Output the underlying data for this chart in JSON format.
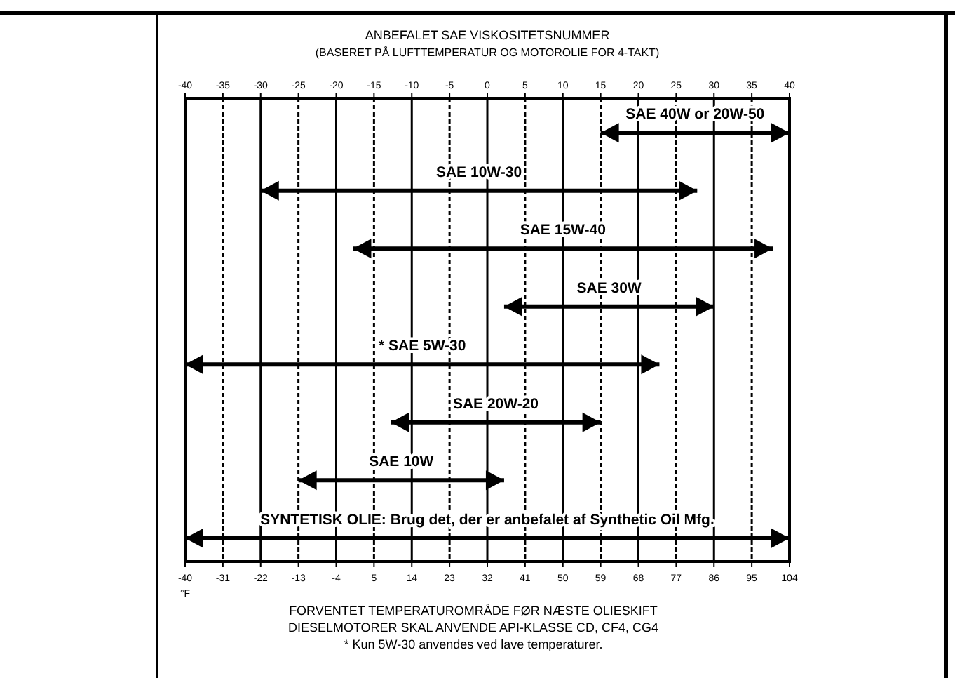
{
  "chart_data": {
    "type": "bar",
    "orientation": "horizontal",
    "title": "ANBEFALET SAE VISKOSITETSNUMMER",
    "subtitle": "(BASERET PÅ LUFTTEMPERATUR OG MOTOROLIE FOR 4-TAKT)",
    "categories": [
      "SAE 40W or 20W-50",
      "SAE 10W-30",
      "SAE 15W-40",
      "SAE 30W",
      "* SAE 5W-30",
      "SAE 20W-20",
      "SAE 10W",
      "SYNTETISK OLIE: Brug det, der er anbefalet af Synthetic Oil Mfg."
    ],
    "base": [
      59,
      -22,
      0,
      36,
      -40,
      9,
      -13,
      -40
    ],
    "values": [
      45,
      104,
      100,
      50,
      113,
      50,
      49,
      144
    ],
    "color": "#000000",
    "xlabel": "°F",
    "xlim": [
      -40,
      104
    ],
    "xticks": [
      -40,
      -31,
      -22,
      -13,
      -4,
      5,
      14,
      23,
      32,
      41,
      50,
      59,
      68,
      77,
      86,
      95,
      104
    ],
    "x2lim": [
      -40,
      40
    ],
    "x2ticks": [
      -40,
      -35,
      -30,
      -25,
      -20,
      -15,
      -10,
      -5,
      0,
      5,
      10,
      15,
      20,
      25,
      30,
      35,
      40
    ],
    "grid": "x",
    "annotations": [
      "FORVENTET TEMPERATUROMRÅDE FØR NÆSTE OLIESKIFT",
      "DIESELMOTORER SKAL ANVENDE API-KLASSE CD, CF4, CG4",
      "* Kun 5W-30 anvendes ved lave temperaturer."
    ]
  }
}
